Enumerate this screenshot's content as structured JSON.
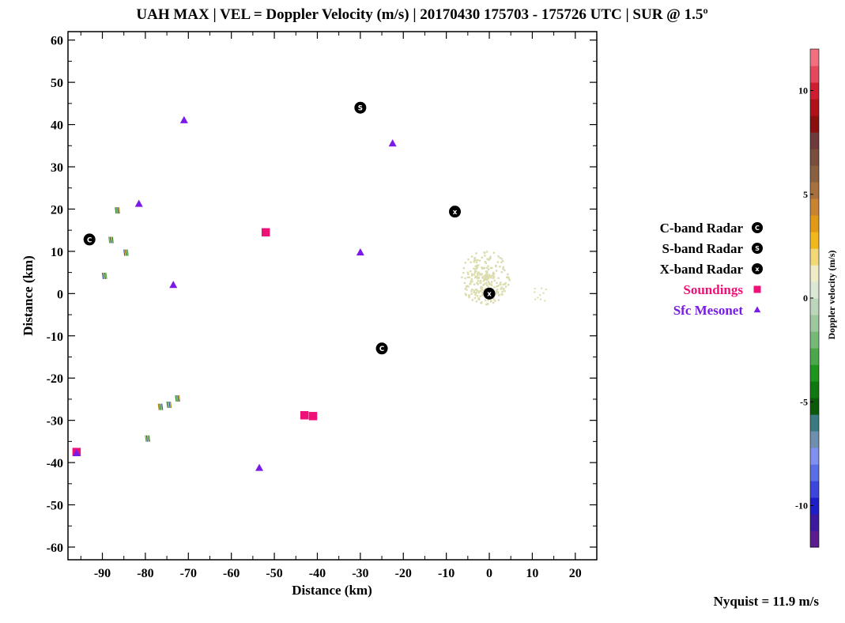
{
  "chart_data": {
    "type": "scatter",
    "title": "UAH MAX | VEL = Doppler Velocity (m/s) | 20170430 175703 - 175726 UTC | SUR @ 1.5º",
    "xlabel": "Distance (km)",
    "ylabel": "Distance (km)",
    "xlim": [
      -98,
      25
    ],
    "ylim": [
      -63,
      62
    ],
    "xticks": [
      -90,
      -80,
      -70,
      -60,
      -50,
      -40,
      -30,
      -20,
      -10,
      0,
      10,
      20
    ],
    "yticks": [
      60,
      50,
      40,
      30,
      20,
      10,
      0,
      -10,
      -20,
      -30,
      -40,
      -50,
      -60
    ],
    "grid": false,
    "legend_position": "right",
    "series": [
      {
        "name": "C-band Radar",
        "marker": "circle-letter",
        "letter": "C",
        "color": "#000000",
        "points": [
          [
            -93,
            12.8
          ],
          [
            -25,
            -13
          ]
        ]
      },
      {
        "name": "S-band Radar",
        "marker": "circle-letter",
        "letter": "S",
        "color": "#000000",
        "points": [
          [
            -30,
            44
          ]
        ]
      },
      {
        "name": "X-band Radar",
        "marker": "circle-letter",
        "letter": "x",
        "color": "#000000",
        "points": [
          [
            -8,
            19.4
          ],
          [
            0,
            0
          ]
        ]
      },
      {
        "name": "Soundings",
        "marker": "square",
        "color": "#ee1278",
        "points": [
          [
            -52,
            14.5
          ],
          [
            -43,
            -28.8
          ],
          [
            -41,
            -29
          ],
          [
            -96,
            -37.5
          ]
        ]
      },
      {
        "name": "Sfc Mesonet",
        "marker": "triangle",
        "color": "#7a1ae8",
        "points": [
          [
            -71,
            41
          ],
          [
            -22.5,
            35.5
          ],
          [
            -81.5,
            21.2
          ],
          [
            -30,
            9.7
          ],
          [
            -73.5,
            2
          ],
          [
            -53.5,
            -41.3
          ],
          [
            -96,
            -37.8
          ]
        ]
      }
    ],
    "velocity_echoes": {
      "near_x_band_color": "#dcdcae",
      "clutter_colors": [
        "#2e8b2e",
        "#6aa84f",
        "#3b5bb5",
        "#b8860b"
      ]
    },
    "colorbar": {
      "label": "Doppler velocity (m/s)",
      "range": [
        -12,
        12
      ],
      "ticks": [
        10,
        5,
        0,
        -5,
        -10
      ],
      "colors": [
        "#5a1e8e",
        "#3b1a9e",
        "#1e1ec8",
        "#3c46dc",
        "#5a6ee6",
        "#7f90ef",
        "#6f8fb0",
        "#3a7a82",
        "#0a5a0a",
        "#0f780f",
        "#1e961e",
        "#4aa84a",
        "#76b876",
        "#9cc89c",
        "#bcd6bc",
        "#dbe8d6",
        "#f0ecc8",
        "#f2d876",
        "#f0b818",
        "#e09a18",
        "#c88432",
        "#a8703c",
        "#8a6040",
        "#7a4e3c",
        "#6e3a3a",
        "#8a1010",
        "#b01018",
        "#d01c30",
        "#e4485a",
        "#f07080"
      ]
    },
    "annotations": {
      "nyquist": "Nyquist = 11.9 m/s"
    }
  }
}
